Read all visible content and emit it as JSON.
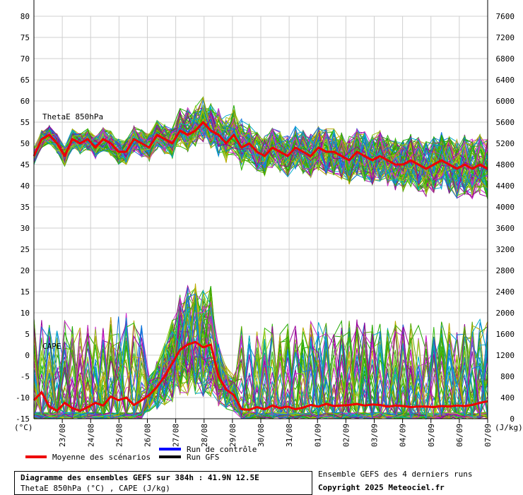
{
  "chart_data": {
    "type": "line",
    "title": "Diagramme des ensembles GEFS sur 384h : 41.9N 12.5E",
    "subtitle": "ThetaE 850hPa (°C) , CAPE (J/kg)",
    "left_axis": {
      "unit_label": "(°C)",
      "ticks": [
        80,
        75,
        70,
        65,
        60,
        55,
        50,
        45,
        40,
        35,
        30,
        25,
        20,
        15,
        10,
        5,
        0,
        -5,
        -10,
        -15
      ],
      "range": [
        -15,
        80
      ]
    },
    "right_axis": {
      "unit_label": "(J/kg)",
      "ticks": [
        7600,
        7200,
        6800,
        6400,
        6000,
        5600,
        5200,
        4800,
        4400,
        4000,
        3600,
        3200,
        2800,
        2400,
        2000,
        1600,
        1200,
        800,
        400,
        0
      ],
      "range": [
        0,
        7600
      ]
    },
    "x_ticks": [
      "23/08",
      "24/08",
      "25/08",
      "26/08",
      "27/08",
      "28/08",
      "29/08",
      "30/08",
      "31/08",
      "01/09",
      "02/09",
      "03/09",
      "04/09",
      "05/09",
      "06/09",
      "07/09"
    ],
    "panel_labels": {
      "thetae": "ThetaE 850hPa",
      "cape": "CAPE"
    },
    "legend": [
      {
        "label": "Moyenne des scénarios",
        "color": "#ee0000"
      },
      {
        "label": "Run de contrôle",
        "color": "#0000ff"
      },
      {
        "label": "Run GFS",
        "color": "#000000"
      }
    ],
    "grid": true,
    "series": [
      {
        "name": "Moyenne des scénarios",
        "panel": "thetae",
        "unit": "°C",
        "values": [
          47,
          51,
          52,
          50,
          47,
          51,
          50,
          51,
          49,
          51,
          50,
          48,
          48,
          51,
          50,
          49,
          52,
          51,
          50,
          53,
          52,
          53,
          55,
          53,
          52,
          50,
          52,
          49,
          50,
          48,
          47,
          49,
          48,
          47,
          49,
          48,
          47,
          49,
          48,
          48,
          47,
          46,
          48,
          47,
          46,
          47,
          46,
          45,
          45,
          46,
          45,
          44,
          45,
          46,
          45,
          44,
          45,
          44,
          45,
          44
        ]
      },
      {
        "name": "Moyenne des scénarios",
        "panel": "cape",
        "unit": "J/kg",
        "values": [
          350,
          500,
          230,
          150,
          300,
          200,
          150,
          220,
          300,
          250,
          420,
          350,
          400,
          260,
          350,
          450,
          600,
          800,
          1050,
          1300,
          1400,
          1450,
          1350,
          1400,
          800,
          550,
          450,
          180,
          170,
          220,
          180,
          250,
          200,
          230,
          180,
          210,
          260,
          230,
          280,
          240,
          250,
          260,
          280,
          250,
          270,
          260,
          230,
          250,
          240,
          220,
          230,
          230,
          220,
          240,
          230,
          250,
          240,
          260,
          300,
          330
        ]
      }
    ],
    "ensemble_colors": [
      "#22aa00",
      "#33bb11",
      "#99cc22",
      "#bbaa00",
      "#cc22cc",
      "#990099",
      "#00aacc",
      "#1177dd",
      "#55aa00"
    ]
  },
  "footer": {
    "box_title": "Diagramme des ensembles GEFS sur 384h : 41.9N 12.5E",
    "box_sub": "ThetaE 850hPa (°C) , CAPE (J/kg)",
    "right_note": "Ensemble GEFS des 4 derniers runs",
    "copyright": "Copyright 2025 Meteociel.fr"
  }
}
